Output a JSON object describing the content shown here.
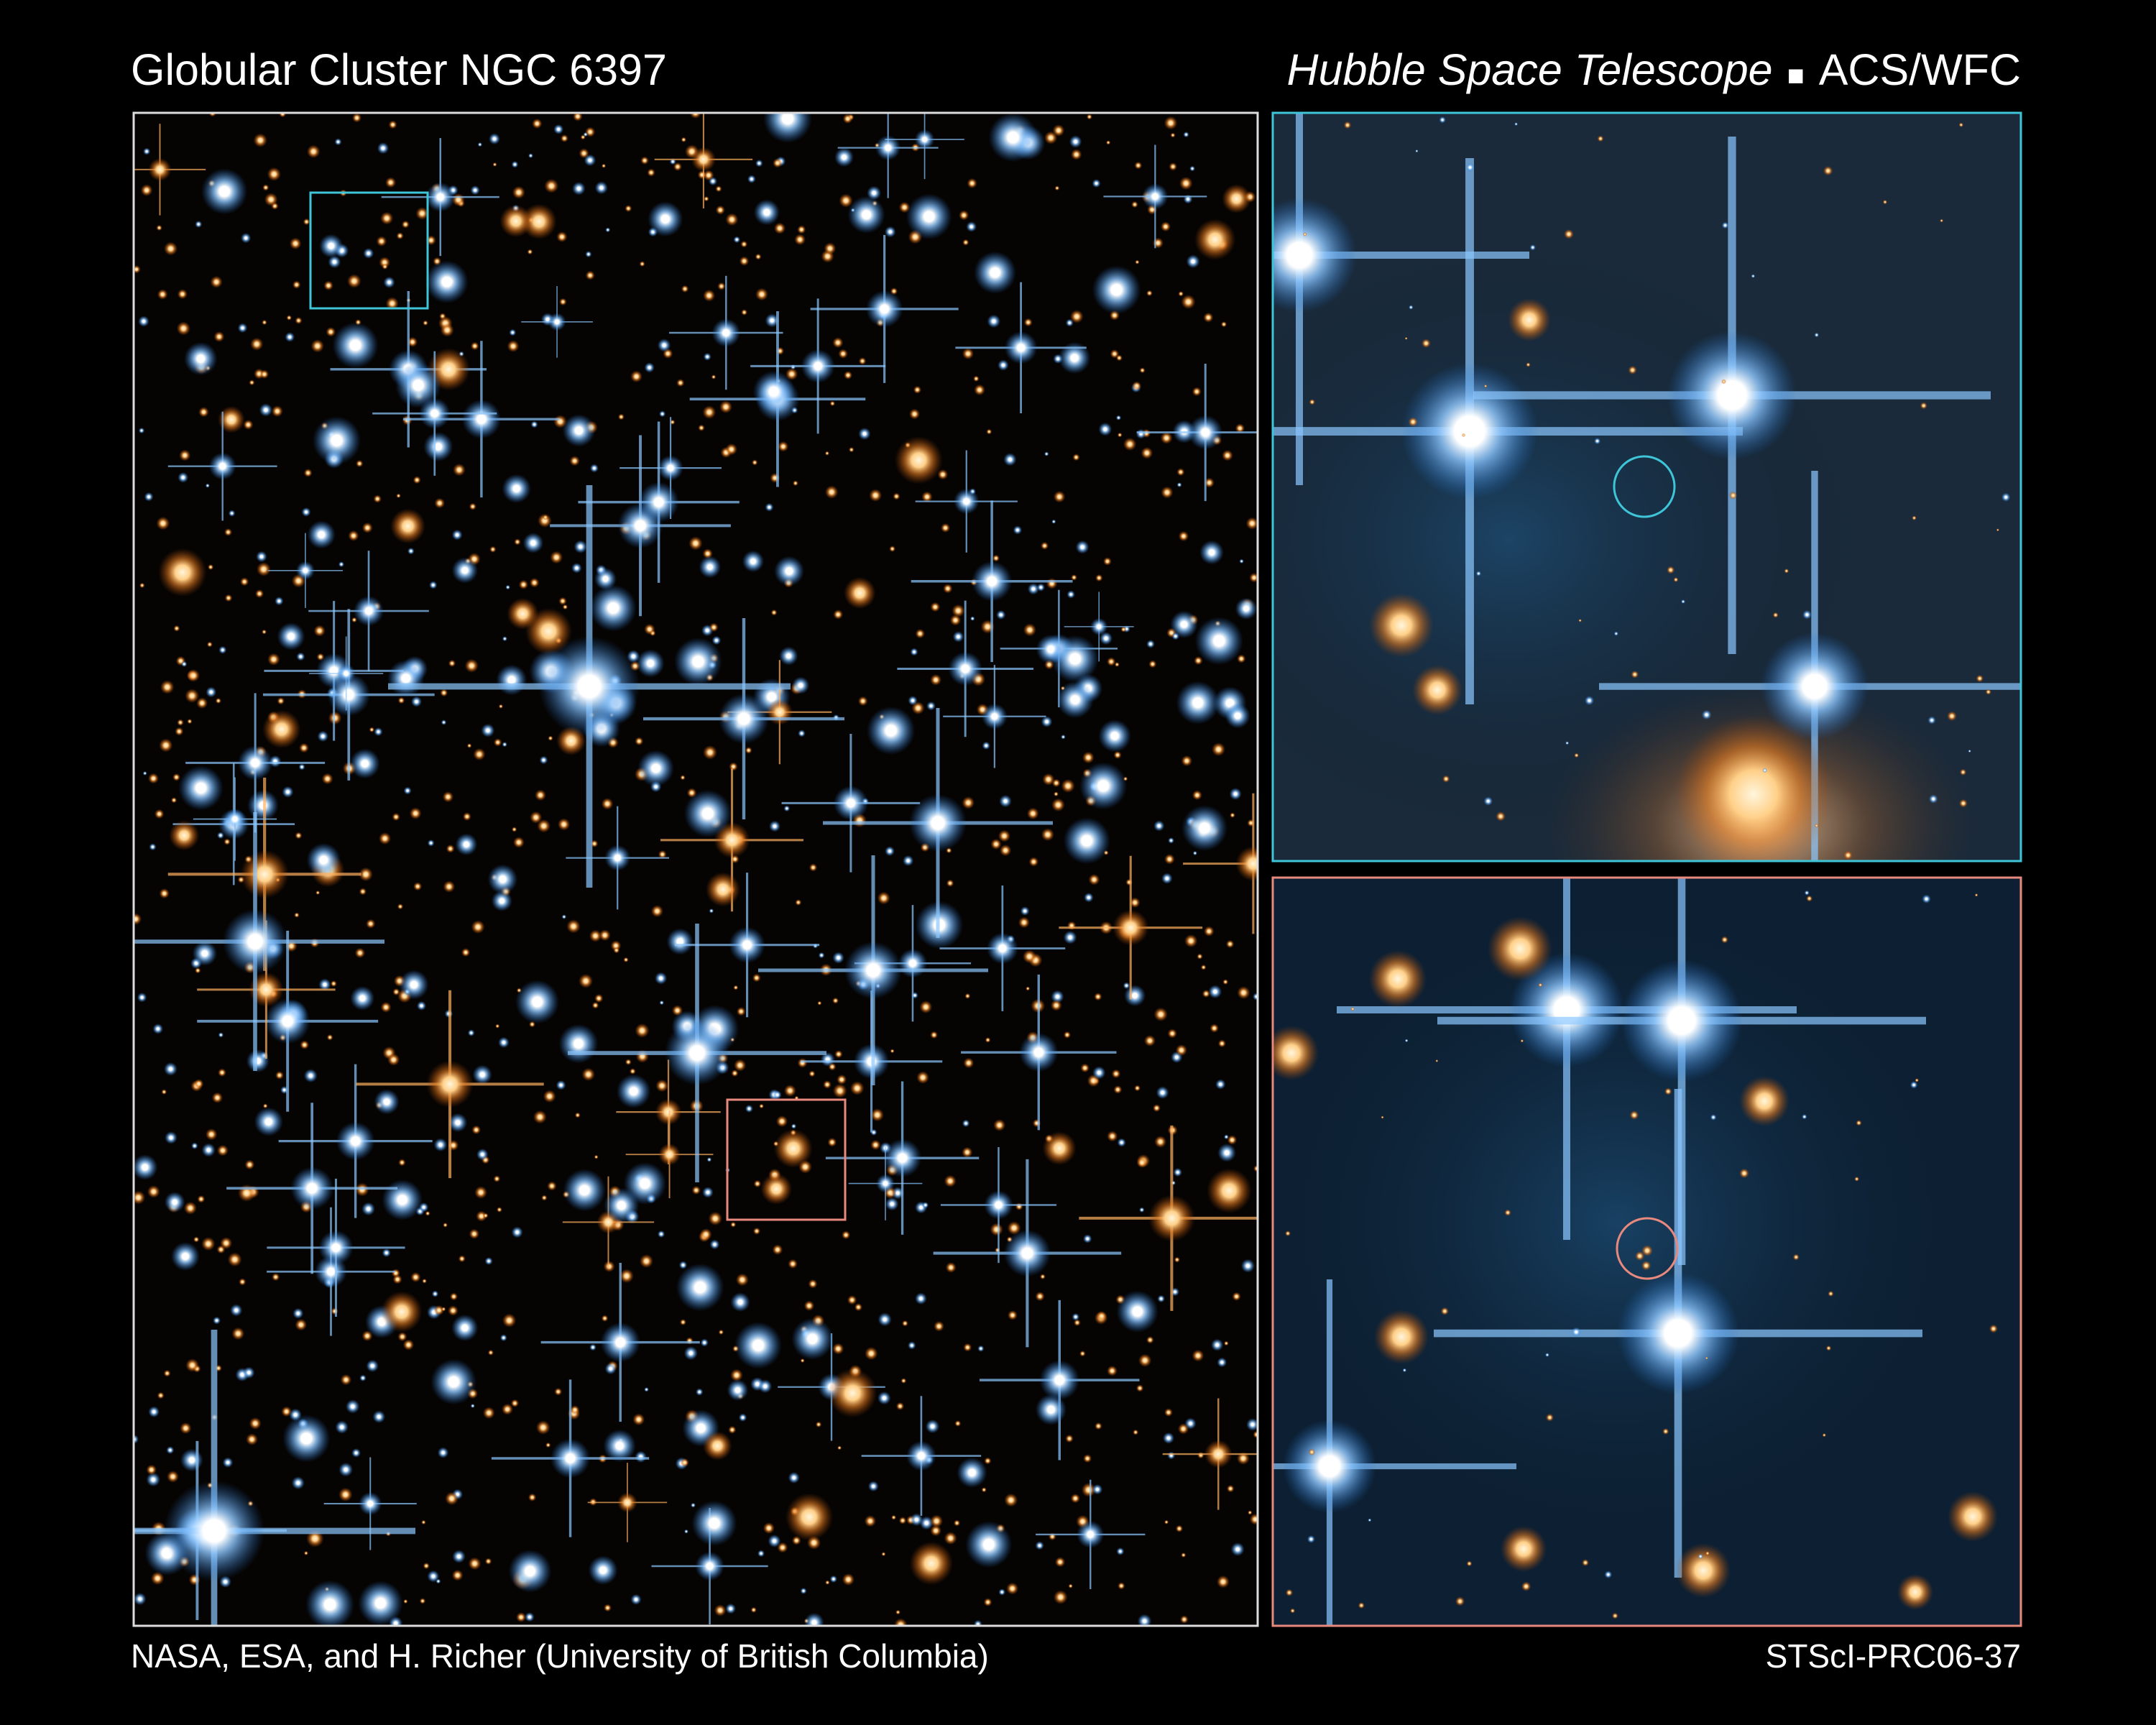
{
  "header": {
    "title": "Globular Cluster NGC 6397",
    "telescope": "Hubble Space Telescope",
    "instrument": "ACS/WFC"
  },
  "footer": {
    "credit": "NASA, ESA, and H. Richer (University of British Columbia)",
    "release_id": "STScI-PRC06-37"
  }
}
